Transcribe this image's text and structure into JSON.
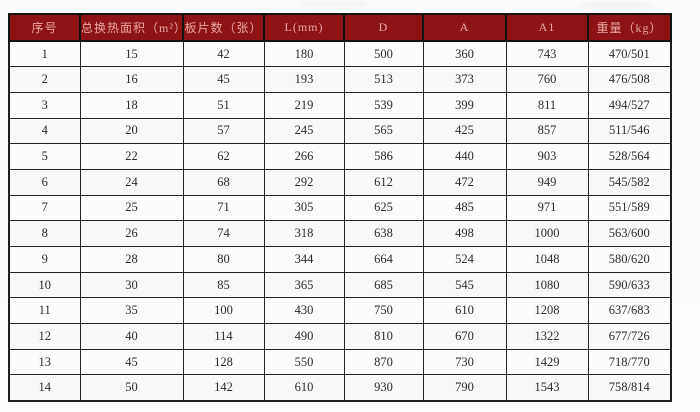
{
  "table": {
    "headers": [
      "序号",
      "总换热面积（m²）",
      "板片数（张）",
      "L(mm)",
      "D",
      "A",
      "A1",
      "重量（kg）"
    ],
    "rows": [
      [
        "1",
        "15",
        "42",
        "180",
        "500",
        "360",
        "743",
        "470/501"
      ],
      [
        "2",
        "16",
        "45",
        "193",
        "513",
        "373",
        "760",
        "476/508"
      ],
      [
        "3",
        "18",
        "51",
        "219",
        "539",
        "399",
        "811",
        "494/527"
      ],
      [
        "4",
        "20",
        "57",
        "245",
        "565",
        "425",
        "857",
        "511/546"
      ],
      [
        "5",
        "22",
        "62",
        "266",
        "586",
        "440",
        "903",
        "528/564"
      ],
      [
        "6",
        "24",
        "68",
        "292",
        "612",
        "472",
        "949",
        "545/582"
      ],
      [
        "7",
        "25",
        "71",
        "305",
        "625",
        "485",
        "971",
        "551/589"
      ],
      [
        "8",
        "26",
        "74",
        "318",
        "638",
        "498",
        "1000",
        "563/600"
      ],
      [
        "9",
        "28",
        "80",
        "344",
        "664",
        "524",
        "1048",
        "580/620"
      ],
      [
        "10",
        "30",
        "85",
        "365",
        "685",
        "545",
        "1080",
        "590/633"
      ],
      [
        "11",
        "35",
        "100",
        "430",
        "750",
        "610",
        "1208",
        "637/683"
      ],
      [
        "12",
        "40",
        "114",
        "490",
        "810",
        "670",
        "1322",
        "677/726"
      ],
      [
        "13",
        "45",
        "128",
        "550",
        "870",
        "730",
        "1429",
        "718/770"
      ],
      [
        "14",
        "50",
        "142",
        "610",
        "930",
        "790",
        "1543",
        "758/814"
      ]
    ]
  },
  "colors": {
    "header_bg": "#8d1414",
    "header_text": "#e9a6a6",
    "border": "#242424",
    "cell_bg": "#fcfcfe"
  }
}
